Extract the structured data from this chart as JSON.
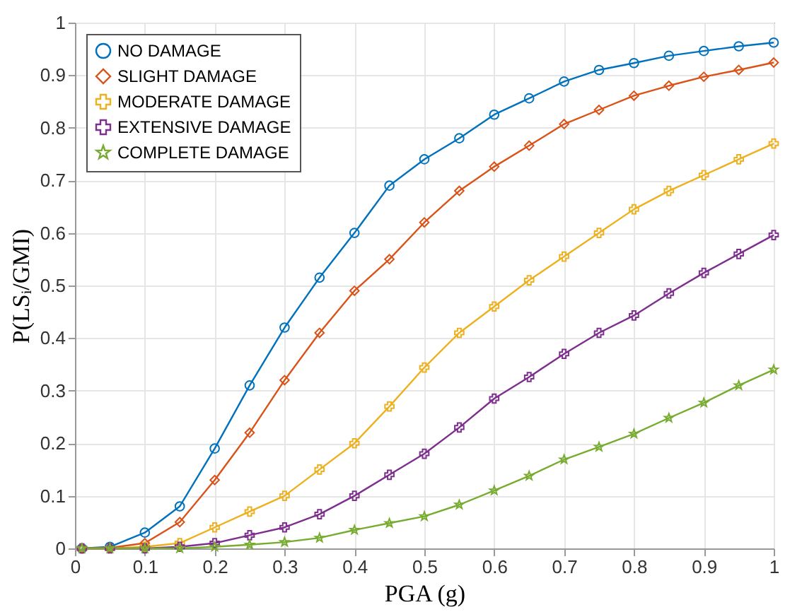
{
  "chart_data": {
    "type": "line",
    "xlabel": "PGA (g)",
    "ylabel": "P(LSᵢ/GMI)",
    "x": [
      0.01,
      0.05,
      0.1,
      0.15,
      0.2,
      0.25,
      0.3,
      0.35,
      0.4,
      0.45,
      0.5,
      0.55,
      0.6,
      0.65,
      0.7,
      0.75,
      0.8,
      0.85,
      0.9,
      0.95,
      1.0
    ],
    "series": [
      {
        "name": "NO DAMAGE",
        "color": "#0072bd",
        "marker": "circle",
        "values": [
          0,
          0.003,
          0.03,
          0.08,
          0.19,
          0.31,
          0.42,
          0.515,
          0.6,
          0.69,
          0.74,
          0.78,
          0.825,
          0.856,
          0.888,
          0.91,
          0.923,
          0.937,
          0.946,
          0.955,
          0.962
        ]
      },
      {
        "name": "SLIGHT DAMAGE",
        "color": "#d95319",
        "marker": "diamond",
        "values": [
          0,
          0.001,
          0.01,
          0.05,
          0.13,
          0.22,
          0.32,
          0.41,
          0.49,
          0.55,
          0.62,
          0.68,
          0.726,
          0.766,
          0.807,
          0.834,
          0.861,
          0.88,
          0.897,
          0.91,
          0.924
        ]
      },
      {
        "name": "MODERATE DAMAGE",
        "color": "#edb120",
        "marker": "cross",
        "values": [
          0,
          0,
          0.003,
          0.01,
          0.04,
          0.07,
          0.1,
          0.15,
          0.2,
          0.27,
          0.344,
          0.41,
          0.46,
          0.51,
          0.555,
          0.6,
          0.645,
          0.68,
          0.71,
          0.74,
          0.77
        ]
      },
      {
        "name": "EXTENSIVE DAMAGE",
        "color": "#7e2f8e",
        "marker": "cross",
        "values": [
          0,
          0,
          0,
          0.003,
          0.01,
          0.025,
          0.04,
          0.065,
          0.1,
          0.14,
          0.18,
          0.23,
          0.285,
          0.326,
          0.37,
          0.41,
          0.443,
          0.485,
          0.524,
          0.56,
          0.596
        ]
      },
      {
        "name": "COMPLETE DAMAGE",
        "color": "#77ac30",
        "marker": "star",
        "values": [
          0,
          0,
          0,
          0,
          0.003,
          0.007,
          0.012,
          0.02,
          0.035,
          0.048,
          0.061,
          0.083,
          0.11,
          0.138,
          0.169,
          0.193,
          0.218,
          0.248,
          0.277,
          0.31,
          0.34
        ]
      }
    ],
    "xlim": [
      0,
      1
    ],
    "xticks": [
      0,
      0.1,
      0.2,
      0.3,
      0.4,
      0.5,
      0.6,
      0.7,
      0.8,
      0.9,
      1
    ],
    "ylim": [
      0,
      1
    ],
    "yticks": [
      0,
      0.1,
      0.2,
      0.3,
      0.4,
      0.5,
      0.6,
      0.7,
      0.8,
      0.9,
      1
    ],
    "grid": true,
    "legend": "top left",
    "line_style": "solid"
  }
}
